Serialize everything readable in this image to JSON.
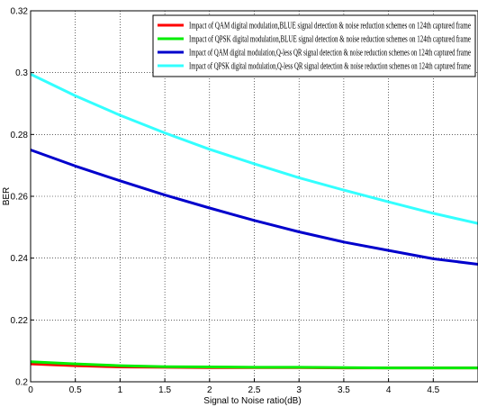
{
  "chart_data": {
    "type": "line",
    "title": "",
    "xlabel": "Signal to Noise ratio(dB)",
    "ylabel": "BER",
    "xlim": [
      0,
      5
    ],
    "ylim": [
      0.2,
      0.32
    ],
    "x_ticks": [
      "0",
      "0.5",
      "1",
      "1.5",
      "2",
      "2.5",
      "3",
      "3.5",
      "4",
      "4.5"
    ],
    "y_ticks": [
      "0.2",
      "0.22",
      "0.24",
      "0.26",
      "0.28",
      "0.3",
      "0.32"
    ],
    "grid": true,
    "legend_position": "top-right",
    "series": [
      {
        "name": "Impact of QAM digital modulation,BLUE signal detection & noise reduction schemes on 124th captured frame",
        "color": "#ff0000",
        "x": [
          0,
          0.5,
          1,
          1.5,
          2,
          2.5,
          3,
          3.5,
          4,
          4.5,
          5
        ],
        "values": [
          0.2058,
          0.2052,
          0.2048,
          0.2047,
          0.2046,
          0.2046,
          0.2046,
          0.2045,
          0.2045,
          0.2045,
          0.2045
        ]
      },
      {
        "name": "Impact of QPSK digital modulation,BLUE signal detection & noise reduction schemes on 124th captured frame",
        "color": "#00ee00",
        "x": [
          0,
          0.5,
          1,
          1.5,
          2,
          2.5,
          3,
          3.5,
          4,
          4.5,
          5
        ],
        "values": [
          0.2065,
          0.2058,
          0.2052,
          0.2049,
          0.2048,
          0.2047,
          0.2047,
          0.2046,
          0.2045,
          0.2045,
          0.2045
        ]
      },
      {
        "name": "Impact of QAM digital modulation,Q-less QR signal detection & noise reduction schemes on 124th captured frame",
        "color": "#0000cc",
        "x": [
          0,
          0.5,
          1,
          1.5,
          2,
          2.5,
          3,
          3.5,
          4,
          4.5,
          5
        ],
        "values": [
          0.275,
          0.2698,
          0.265,
          0.2604,
          0.2562,
          0.2522,
          0.2485,
          0.2452,
          0.2425,
          0.2398,
          0.238
        ]
      },
      {
        "name": "Impact of QPSK digital modulation,Q-less QR signal detection & noise reduction schemes on 124th captured frame",
        "color": "#33ffff",
        "x": [
          0,
          0.5,
          1,
          1.5,
          2,
          2.5,
          3,
          3.5,
          4,
          4.5,
          5
        ],
        "values": [
          0.2995,
          0.2925,
          0.2862,
          0.2805,
          0.2752,
          0.2705,
          0.266,
          0.262,
          0.2582,
          0.2545,
          0.2512
        ]
      }
    ]
  }
}
